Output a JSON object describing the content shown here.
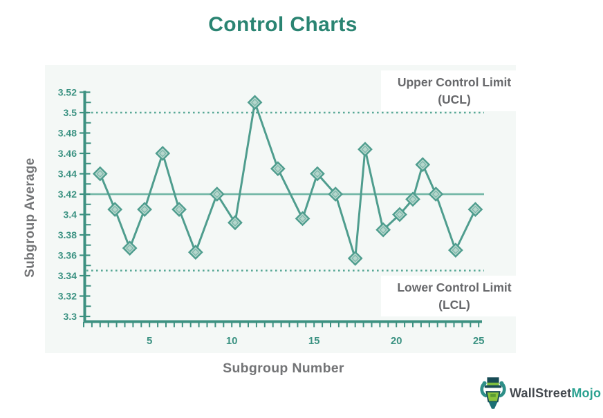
{
  "title": "Control Charts",
  "chart_data": {
    "type": "line",
    "title": "Control Charts",
    "xlabel": "Subgroup Number",
    "ylabel": "Subgroup Average",
    "x": [
      2,
      2.9,
      3.8,
      4.7,
      5.8,
      6.8,
      7.8,
      9.1,
      10.2,
      11.4,
      12.8,
      14.3,
      15.2,
      16.3,
      17.5,
      18.1,
      19.2,
      20.2,
      21,
      21.6,
      22.4,
      23.6,
      24.8
    ],
    "y": [
      3.44,
      3.405,
      3.367,
      3.405,
      3.46,
      3.405,
      3.363,
      3.42,
      3.392,
      3.51,
      3.445,
      3.396,
      3.44,
      3.42,
      3.357,
      3.464,
      3.385,
      3.4,
      3.415,
      3.449,
      3.42,
      3.365,
      3.405
    ],
    "marker": "diamond",
    "grid": false,
    "legend": false,
    "xlim": [
      1,
      25.6
    ],
    "ylim": [
      3.3,
      3.52
    ],
    "y_ticks": [
      {
        "v": 3.3,
        "label": "3.3"
      },
      {
        "v": 3.32,
        "label": "3.32"
      },
      {
        "v": 3.34,
        "label": "3.34"
      },
      {
        "v": 3.36,
        "label": "3.36"
      },
      {
        "v": 3.38,
        "label": "3.38"
      },
      {
        "v": 3.4,
        "label": "3.4"
      },
      {
        "v": 3.42,
        "label": "3.42"
      },
      {
        "v": 3.44,
        "label": "3.44"
      },
      {
        "v": 3.46,
        "label": "3.46"
      },
      {
        "v": 3.48,
        "label": "3.48"
      },
      {
        "v": 3.5,
        "label": "3.5"
      },
      {
        "v": 3.52,
        "label": "3.52"
      }
    ],
    "x_ticks": [
      {
        "v": 5,
        "label": "5"
      },
      {
        "v": 10,
        "label": "10"
      },
      {
        "v": 15,
        "label": "15"
      },
      {
        "v": 20,
        "label": "20"
      },
      {
        "v": 25,
        "label": "25"
      }
    ],
    "x_minor_step": 0.5,
    "y_minor_step": 0.01,
    "control_limits": {
      "ucl": 3.5,
      "center": 3.42,
      "lcl": 3.345
    },
    "annotations": {
      "ucl_label": "Upper Control Limit",
      "ucl_abbr": "(UCL)",
      "lcl_label": "Lower Control Limit",
      "lcl_abbr": "(LCL)"
    }
  },
  "logo": {
    "text_primary": "WallStreet",
    "text_secondary": "Mojo",
    "mascot": "wallstreetmojo-bull-mascot"
  },
  "colors": {
    "title_text": "#2a8472",
    "axis": "#3d9181",
    "tick_label": "#3b9282",
    "series_line": "#4f9d8e",
    "marker_fill": "#b5d6cc",
    "marker_stroke": "#4f9d8e",
    "center_line": "#74b7a7",
    "control_dotted": "#58a896",
    "gray_text": "#67686b",
    "panel_bg": "#f4f8f6",
    "logo_text": "#43484e",
    "logo_accent": "#2aa190"
  }
}
